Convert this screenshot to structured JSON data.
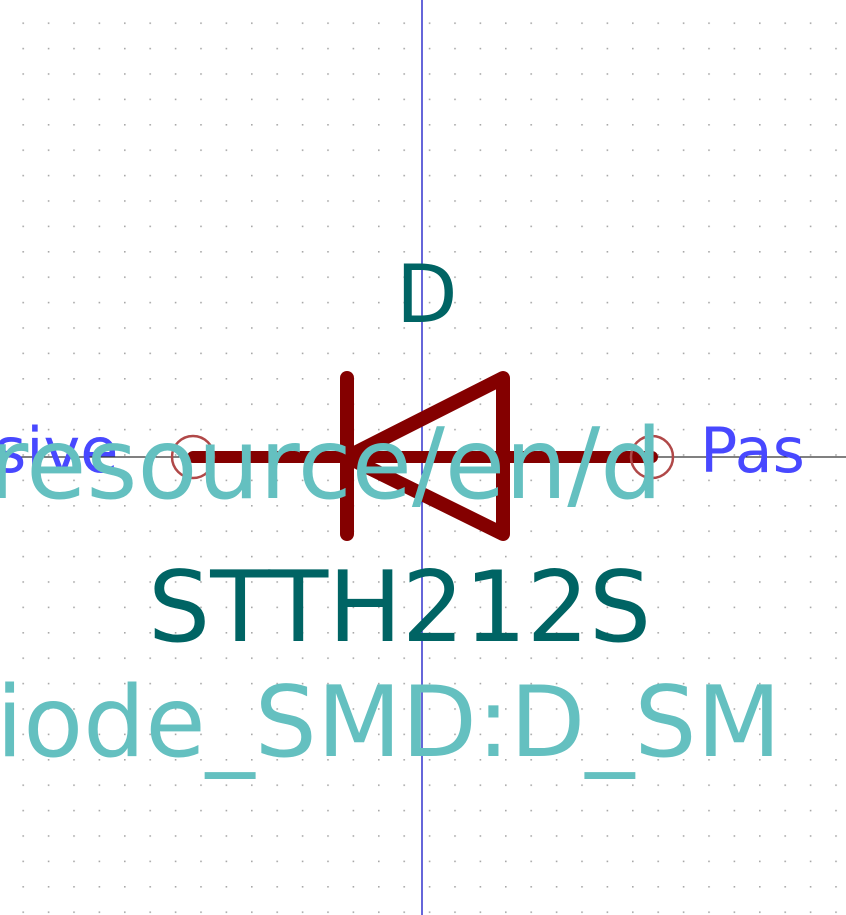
{
  "symbol": {
    "reference": "D",
    "value": "STTH212S",
    "footprint": "iode_SMD:D_SM",
    "datasheet": "resource/en/d",
    "pin_left_type": "sive",
    "pin_right_type": "Pas"
  },
  "colors": {
    "background": "#ffffff",
    "grid_dot": "#a8a8a8",
    "axis": "#0000c0",
    "symbol_body": "#840000",
    "pin_end_marker": "#b04848",
    "reference_value_text": "#006464",
    "field_text": "#64c0c0",
    "pin_type_text": "#4848ff"
  },
  "icons": {
    "diode": "diode-symbol-icon",
    "pin_marker": "pin-end-circle-icon"
  }
}
